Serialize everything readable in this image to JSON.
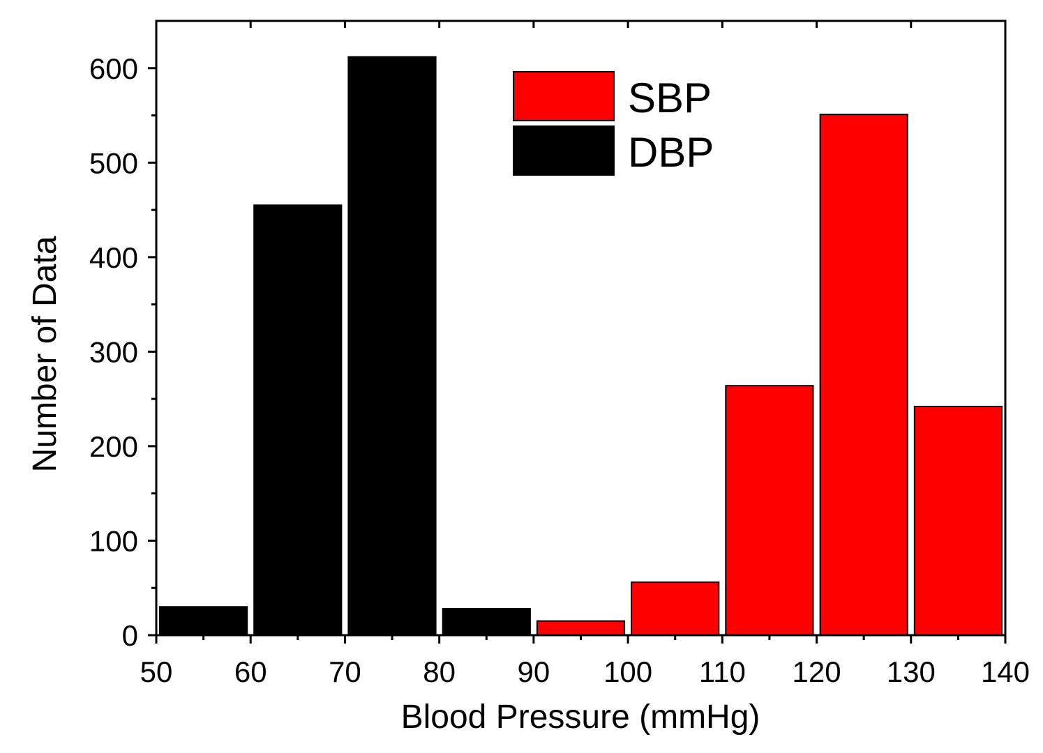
{
  "chart_data": {
    "type": "bar",
    "title": "",
    "xlabel": "Blood Pressure (mmHg)",
    "ylabel": "Number of Data",
    "xlim": [
      50,
      140
    ],
    "ylim": [
      0,
      650
    ],
    "x_ticks": [
      50,
      60,
      70,
      80,
      90,
      100,
      110,
      120,
      130,
      140
    ],
    "x_tick_labels": [
      "50",
      "60",
      "70",
      "80",
      "90",
      "100",
      "110",
      "120",
      "130",
      "140"
    ],
    "y_ticks": [
      0,
      100,
      200,
      300,
      400,
      500,
      600
    ],
    "y_tick_labels": [
      "0",
      "100",
      "200",
      "300",
      "400",
      "500",
      "600"
    ],
    "grid": false,
    "legend_position": "top-center",
    "bin_width": 10,
    "series": [
      {
        "name": "SBP",
        "color": "#ff0000",
        "bins": [
          {
            "from": 90,
            "to": 100,
            "value": 15
          },
          {
            "from": 100,
            "to": 110,
            "value": 56
          },
          {
            "from": 110,
            "to": 120,
            "value": 264
          },
          {
            "from": 120,
            "to": 130,
            "value": 551
          },
          {
            "from": 130,
            "to": 140,
            "value": 242
          }
        ]
      },
      {
        "name": "DBP",
        "color": "#000000",
        "bins": [
          {
            "from": 50,
            "to": 60,
            "value": 30
          },
          {
            "from": 60,
            "to": 70,
            "value": 455
          },
          {
            "from": 70,
            "to": 80,
            "value": 612
          },
          {
            "from": 80,
            "to": 90,
            "value": 28
          }
        ]
      }
    ]
  }
}
